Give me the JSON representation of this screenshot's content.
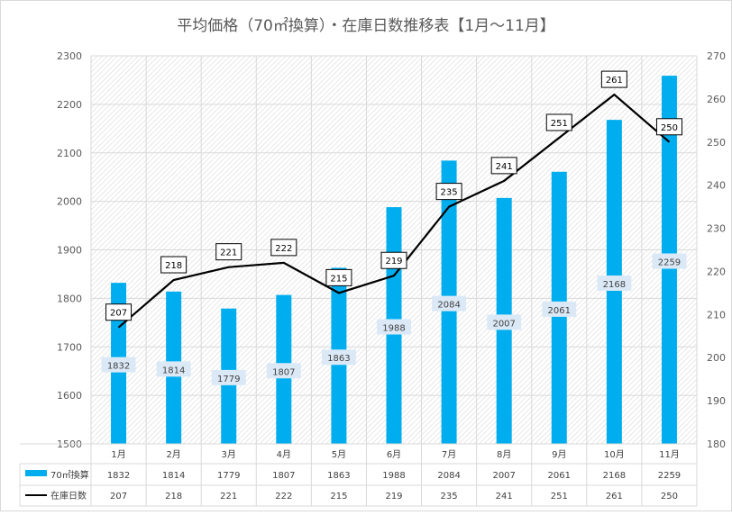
{
  "chart_data": {
    "type": "bar",
    "title": "平均価格（70㎡換算）・在庫日数推移表【1月～11月】",
    "categories": [
      "1月",
      "2月",
      "3月",
      "4月",
      "5月",
      "6月",
      "7月",
      "8月",
      "9月",
      "10月",
      "11月"
    ],
    "series": [
      {
        "name": "70㎡換算",
        "type": "bar",
        "axis": "left",
        "color": "#00AEEF",
        "values": [
          1832,
          1814,
          1779,
          1807,
          1863,
          1988,
          2084,
          2007,
          2061,
          2168,
          2259
        ]
      },
      {
        "name": "在庫日数",
        "type": "line",
        "axis": "right",
        "color": "#000000",
        "values": [
          207,
          218,
          221,
          222,
          215,
          219,
          235,
          241,
          251,
          261,
          250
        ]
      }
    ],
    "y_left": {
      "ylim": [
        1500,
        2300
      ],
      "ticks": [
        "1500",
        "1600",
        "1700",
        "1800",
        "1900",
        "2000",
        "2100",
        "2200",
        "2300"
      ]
    },
    "y_right": {
      "ylim": [
        180,
        270
      ],
      "ticks": [
        "180",
        "190",
        "200",
        "210",
        "220",
        "230",
        "240",
        "250",
        "260",
        "270"
      ]
    },
    "grid": true,
    "legend": "data-table-below"
  }
}
